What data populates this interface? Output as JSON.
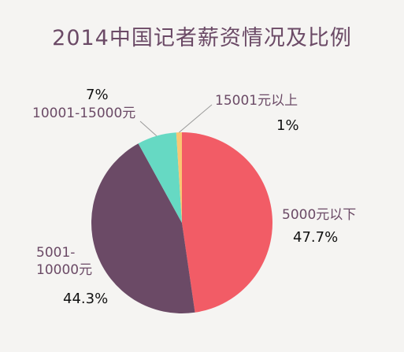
{
  "chart_data": {
    "type": "pie",
    "title": "2014中国记者薪资情况及比例",
    "slices": [
      {
        "category": "5000元以下",
        "category_lines": [
          "5000元以下"
        ],
        "value": 47.7,
        "value_label": "47.7%",
        "color": "#f25c66"
      },
      {
        "category": "5001-10000元",
        "category_lines": [
          "5001-",
          "10000元"
        ],
        "value": 44.3,
        "value_label": "44.3%",
        "color": "#6b4a66"
      },
      {
        "category": "10001-15000元",
        "category_lines": [
          "10001-15000元"
        ],
        "value": 7,
        "value_label": "7%",
        "color": "#66d9c3"
      },
      {
        "category": "15001元以上",
        "category_lines": [
          "15001元以上"
        ],
        "value": 1,
        "value_label": "1%",
        "color": "#fac673"
      }
    ]
  }
}
